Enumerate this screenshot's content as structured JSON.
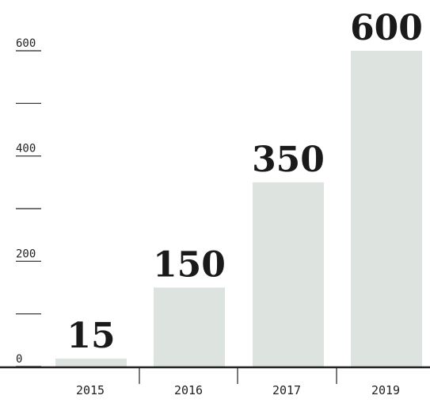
{
  "chart_data": {
    "type": "bar",
    "categories": [
      "2015",
      "2016",
      "2017",
      "2019"
    ],
    "values": [
      15,
      150,
      350,
      600
    ],
    "data_labels": [
      "15",
      "150",
      "350",
      "600"
    ],
    "title": "",
    "xlabel": "",
    "ylabel": "",
    "ylim": [
      0,
      600
    ],
    "yticks": [
      0,
      100,
      200,
      300,
      400,
      500,
      600
    ],
    "ytick_labels": [
      "0",
      "",
      "200",
      "",
      "400",
      "",
      "600"
    ],
    "grid": false,
    "legend": "none",
    "colors": {
      "bar": "#dde3de",
      "axis": "#222222",
      "text": "#1a1a1a"
    }
  }
}
